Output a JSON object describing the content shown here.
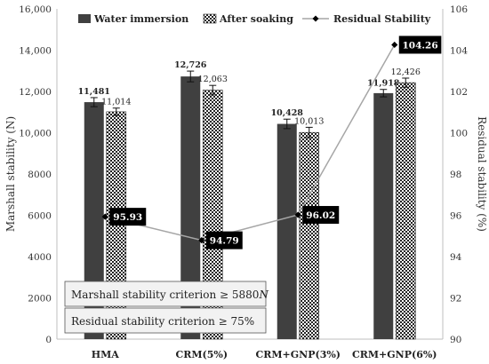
{
  "chart_data": {
    "type": "bar",
    "categories": [
      "HMA",
      "CRM(5%)",
      "CRM+GNP(3%)",
      "CRM+GNP(6%)"
    ],
    "series": [
      {
        "name": "Water immersion",
        "axis": "left",
        "color": "#404040",
        "pattern": "solid",
        "values": [
          11481,
          12726,
          10428,
          11918
        ],
        "labels": [
          "11,481",
          "12,726",
          "10,428",
          "11,918"
        ],
        "errors": [
          220,
          260,
          230,
          180
        ]
      },
      {
        "name": "After soaking",
        "axis": "left",
        "color": "#222222",
        "pattern": "checker",
        "values": [
          11014,
          12063,
          10013,
          12426
        ],
        "labels": [
          "11,014",
          "12,063",
          "10,013",
          "12,426"
        ],
        "errors": [
          180,
          230,
          250,
          220
        ]
      },
      {
        "name": "Residual Stability",
        "axis": "right",
        "type": "line",
        "color": "#a6a6a6",
        "marker": "diamond",
        "values": [
          95.93,
          94.79,
          96.02,
          104.26
        ],
        "labels": [
          "95.93",
          "94.79",
          "96.02",
          "104.26"
        ]
      }
    ],
    "ylabel": "Marshall stability (N)",
    "ylabel_right": "Residual stability (%)",
    "ylim": [
      0,
      16000
    ],
    "ylim_right": [
      90,
      106
    ],
    "yticks": [
      "0",
      "2000",
      "4000",
      "6000",
      "8000",
      "10,000",
      "12,000",
      "14,000",
      "16,000"
    ],
    "yticks_right": [
      "90",
      "92",
      "94",
      "96",
      "98",
      "100",
      "102",
      "104",
      "106"
    ],
    "legend_position": "top",
    "grid": false
  },
  "notes": {
    "marshall_prefix": "Marshall stability criterion ≥ 5880",
    "marshall_unit": "N",
    "residual": "Residual stability criterion ≥ 75%"
  }
}
